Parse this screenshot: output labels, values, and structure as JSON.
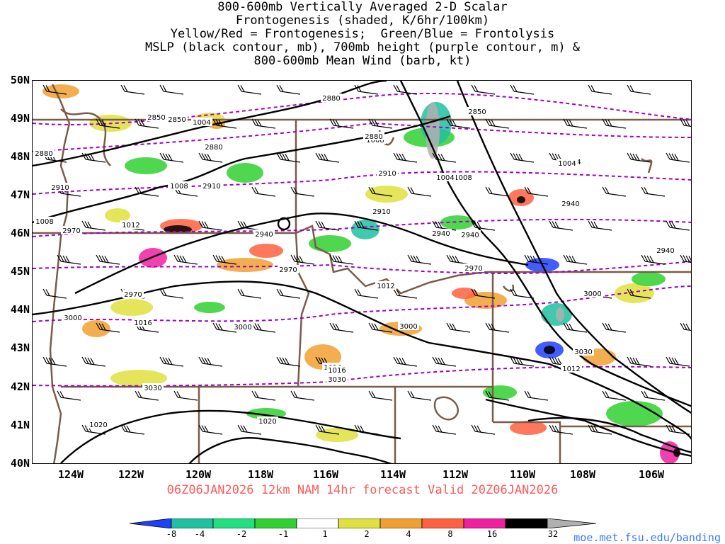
{
  "title_lines": [
    "800-600mb Vertically Averaged 2-D Scalar",
    "Frontogenesis (shaded, K/6hr/100km)",
    "Yellow/Red = Frontogenesis;  Green/Blue = Frontolysis",
    "MSLP (black contour, mb), 700mb height (purple contour, m) &",
    "800-600mb Mean Wind (barb, kt)"
  ],
  "axes": {
    "lat_labels": [
      "50N",
      "49N",
      "48N",
      "47N",
      "46N",
      "45N",
      "44N",
      "43N",
      "42N",
      "41N",
      "40N"
    ],
    "lon_labels": [
      "124W",
      "122W",
      "120W",
      "118W",
      "116W",
      "114W",
      "112W",
      "110W",
      "108W",
      "106W"
    ],
    "lat_range": [
      40,
      50
    ],
    "lon_range": [
      -125,
      -105
    ]
  },
  "valid_text": "06Z06JAN2026 12km NAM 14hr forecast Valid 20Z06JAN2026",
  "credit": "moe.met.fsu.edu/banding",
  "colorbar": {
    "labels": [
      "-8",
      "-4",
      "-2",
      "-1",
      "1",
      "2",
      "4",
      "8",
      "16",
      "32"
    ],
    "colors": [
      "#2040ff",
      "#20c0a0",
      "#20e080",
      "#30d030",
      "#ffffff",
      "#e0e040",
      "#f0a030",
      "#ff6040",
      "#f020a0",
      "#000000",
      "#b0b0b0"
    ]
  },
  "colors": {
    "mslp_contour": "#000000",
    "height_contour": "#a000c8",
    "borders": "#7a5c48",
    "title_valid": "#ff5a5a",
    "credit": "#3b78ff"
  },
  "mslp_labels": [
    "1004",
    "1008",
    "1012",
    "1016",
    "1020"
  ],
  "height_labels": [
    "2850",
    "2880",
    "2910",
    "2940",
    "2970",
    "3000",
    "3030"
  ],
  "map_labels": [
    {
      "text": "1004",
      "kind": "mslp"
    },
    {
      "text": "1008",
      "kind": "mslp"
    },
    {
      "text": "1012",
      "kind": "mslp"
    },
    {
      "text": "1012",
      "kind": "mslp"
    },
    {
      "text": "1016",
      "kind": "mslp"
    },
    {
      "text": "1016",
      "kind": "mslp"
    },
    {
      "text": "1016",
      "kind": "mslp"
    },
    {
      "text": "1020",
      "kind": "mslp"
    },
    {
      "text": "1020",
      "kind": "mslp"
    },
    {
      "text": "1004",
      "kind": "mslp"
    },
    {
      "text": "1008",
      "kind": "mslp"
    },
    {
      "text": "1012",
      "kind": "mslp"
    },
    {
      "text": "1008",
      "kind": "mslp"
    },
    {
      "text": "1008",
      "kind": "mslp"
    },
    {
      "text": "1008",
      "kind": "mslp"
    },
    {
      "text": "1004",
      "kind": "mslp"
    },
    {
      "text": "2850",
      "kind": "height"
    },
    {
      "text": "2880",
      "kind": "height"
    },
    {
      "text": "2880",
      "kind": "height"
    },
    {
      "text": "2880",
      "kind": "height"
    },
    {
      "text": "2850",
      "kind": "height"
    },
    {
      "text": "2880",
      "kind": "height"
    },
    {
      "text": "2910",
      "kind": "height"
    },
    {
      "text": "2910",
      "kind": "height"
    },
    {
      "text": "2910",
      "kind": "height"
    },
    {
      "text": "2940",
      "kind": "height"
    },
    {
      "text": "2940",
      "kind": "height"
    },
    {
      "text": "2940",
      "kind": "height"
    },
    {
      "text": "2940",
      "kind": "height"
    },
    {
      "text": "2970",
      "kind": "height"
    },
    {
      "text": "2970",
      "kind": "height"
    },
    {
      "text": "2970",
      "kind": "height"
    },
    {
      "text": "2970",
      "kind": "height"
    },
    {
      "text": "3000",
      "kind": "height"
    },
    {
      "text": "3000",
      "kind": "height"
    },
    {
      "text": "3000",
      "kind": "height"
    },
    {
      "text": "3000",
      "kind": "height"
    },
    {
      "text": "3030",
      "kind": "height"
    },
    {
      "text": "3030",
      "kind": "height"
    },
    {
      "text": "3030",
      "kind": "height"
    },
    {
      "text": "2850",
      "kind": "height"
    },
    {
      "text": "1004",
      "kind": "mslp"
    },
    {
      "text": "2910",
      "kind": "height"
    },
    {
      "text": "2940",
      "kind": "height"
    }
  ]
}
